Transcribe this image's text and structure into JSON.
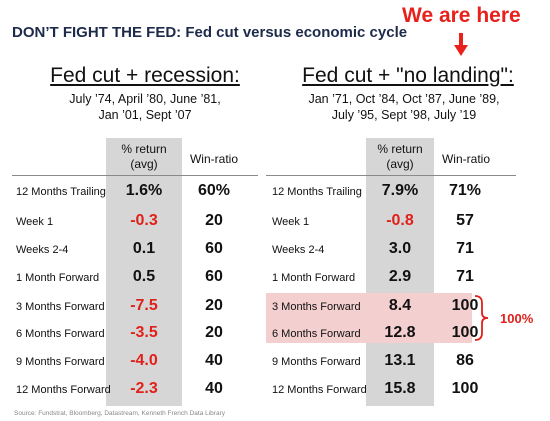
{
  "title": "DON’T FIGHT THE FED: Fed cut versus economic cycle",
  "callout": "We are here",
  "left": {
    "heading": "Fed cut + recession:",
    "dates_line1": "July ’74, April ’80, June ’81,",
    "dates_line2": "Jan ’01, Sept ’07",
    "col_return_line1": "% return",
    "col_return_line2": "(avg)",
    "col_win": "Win-ratio",
    "rows": [
      {
        "label": "12 Months Trailing",
        "ret": "1.6%",
        "win": "60%"
      },
      {
        "label": "Week 1",
        "ret": "-0.3",
        "win": "20"
      },
      {
        "label": "Weeks 2-4",
        "ret": "0.1",
        "win": "60"
      },
      {
        "label": "1 Month Forward",
        "ret": "0.5",
        "win": "60"
      },
      {
        "label": "3 Months Forward",
        "ret": "-7.5",
        "win": "20"
      },
      {
        "label": "6 Months Forward",
        "ret": "-3.5",
        "win": "20"
      },
      {
        "label": "9 Months Forward",
        "ret": "-4.0",
        "win": "40"
      },
      {
        "label": "12 Months Forward",
        "ret": "-2.3",
        "win": "40"
      }
    ]
  },
  "right": {
    "heading": "Fed cut + \"no landing\":",
    "dates_line1": "Jan ’71, Oct ’84, Oct ’87, June ’89,",
    "dates_line2": "July ’95, Sept ’98, July ’19",
    "col_return_line1": "% return",
    "col_return_line2": "(avg)",
    "col_win": "Win-ratio",
    "rows": [
      {
        "label": "12 Months Trailing",
        "ret": "7.9%",
        "win": "71%"
      },
      {
        "label": "Week 1",
        "ret": "-0.8",
        "win": "57"
      },
      {
        "label": "Weeks 2-4",
        "ret": "3.0",
        "win": "71"
      },
      {
        "label": "1 Month Forward",
        "ret": "2.9",
        "win": "71"
      },
      {
        "label": "3 Months Forward",
        "ret": "8.4",
        "win": "100"
      },
      {
        "label": "6 Months Forward",
        "ret": "12.8",
        "win": "100"
      },
      {
        "label": "9 Months Forward",
        "ret": "13.1",
        "win": "86"
      },
      {
        "label": "12 Months Forward",
        "ret": "15.8",
        "win": "100"
      }
    ]
  },
  "brace_label": "100%",
  "source": "Source: Fundstrat, Bloomberg, Datastream, Kenneth French Data Library",
  "colors": {
    "negative": "#e0211b",
    "callout": "#e8211c",
    "shade": "#d6d6d6",
    "highlight": "#f4cfd0",
    "title": "#1d2a4a"
  }
}
